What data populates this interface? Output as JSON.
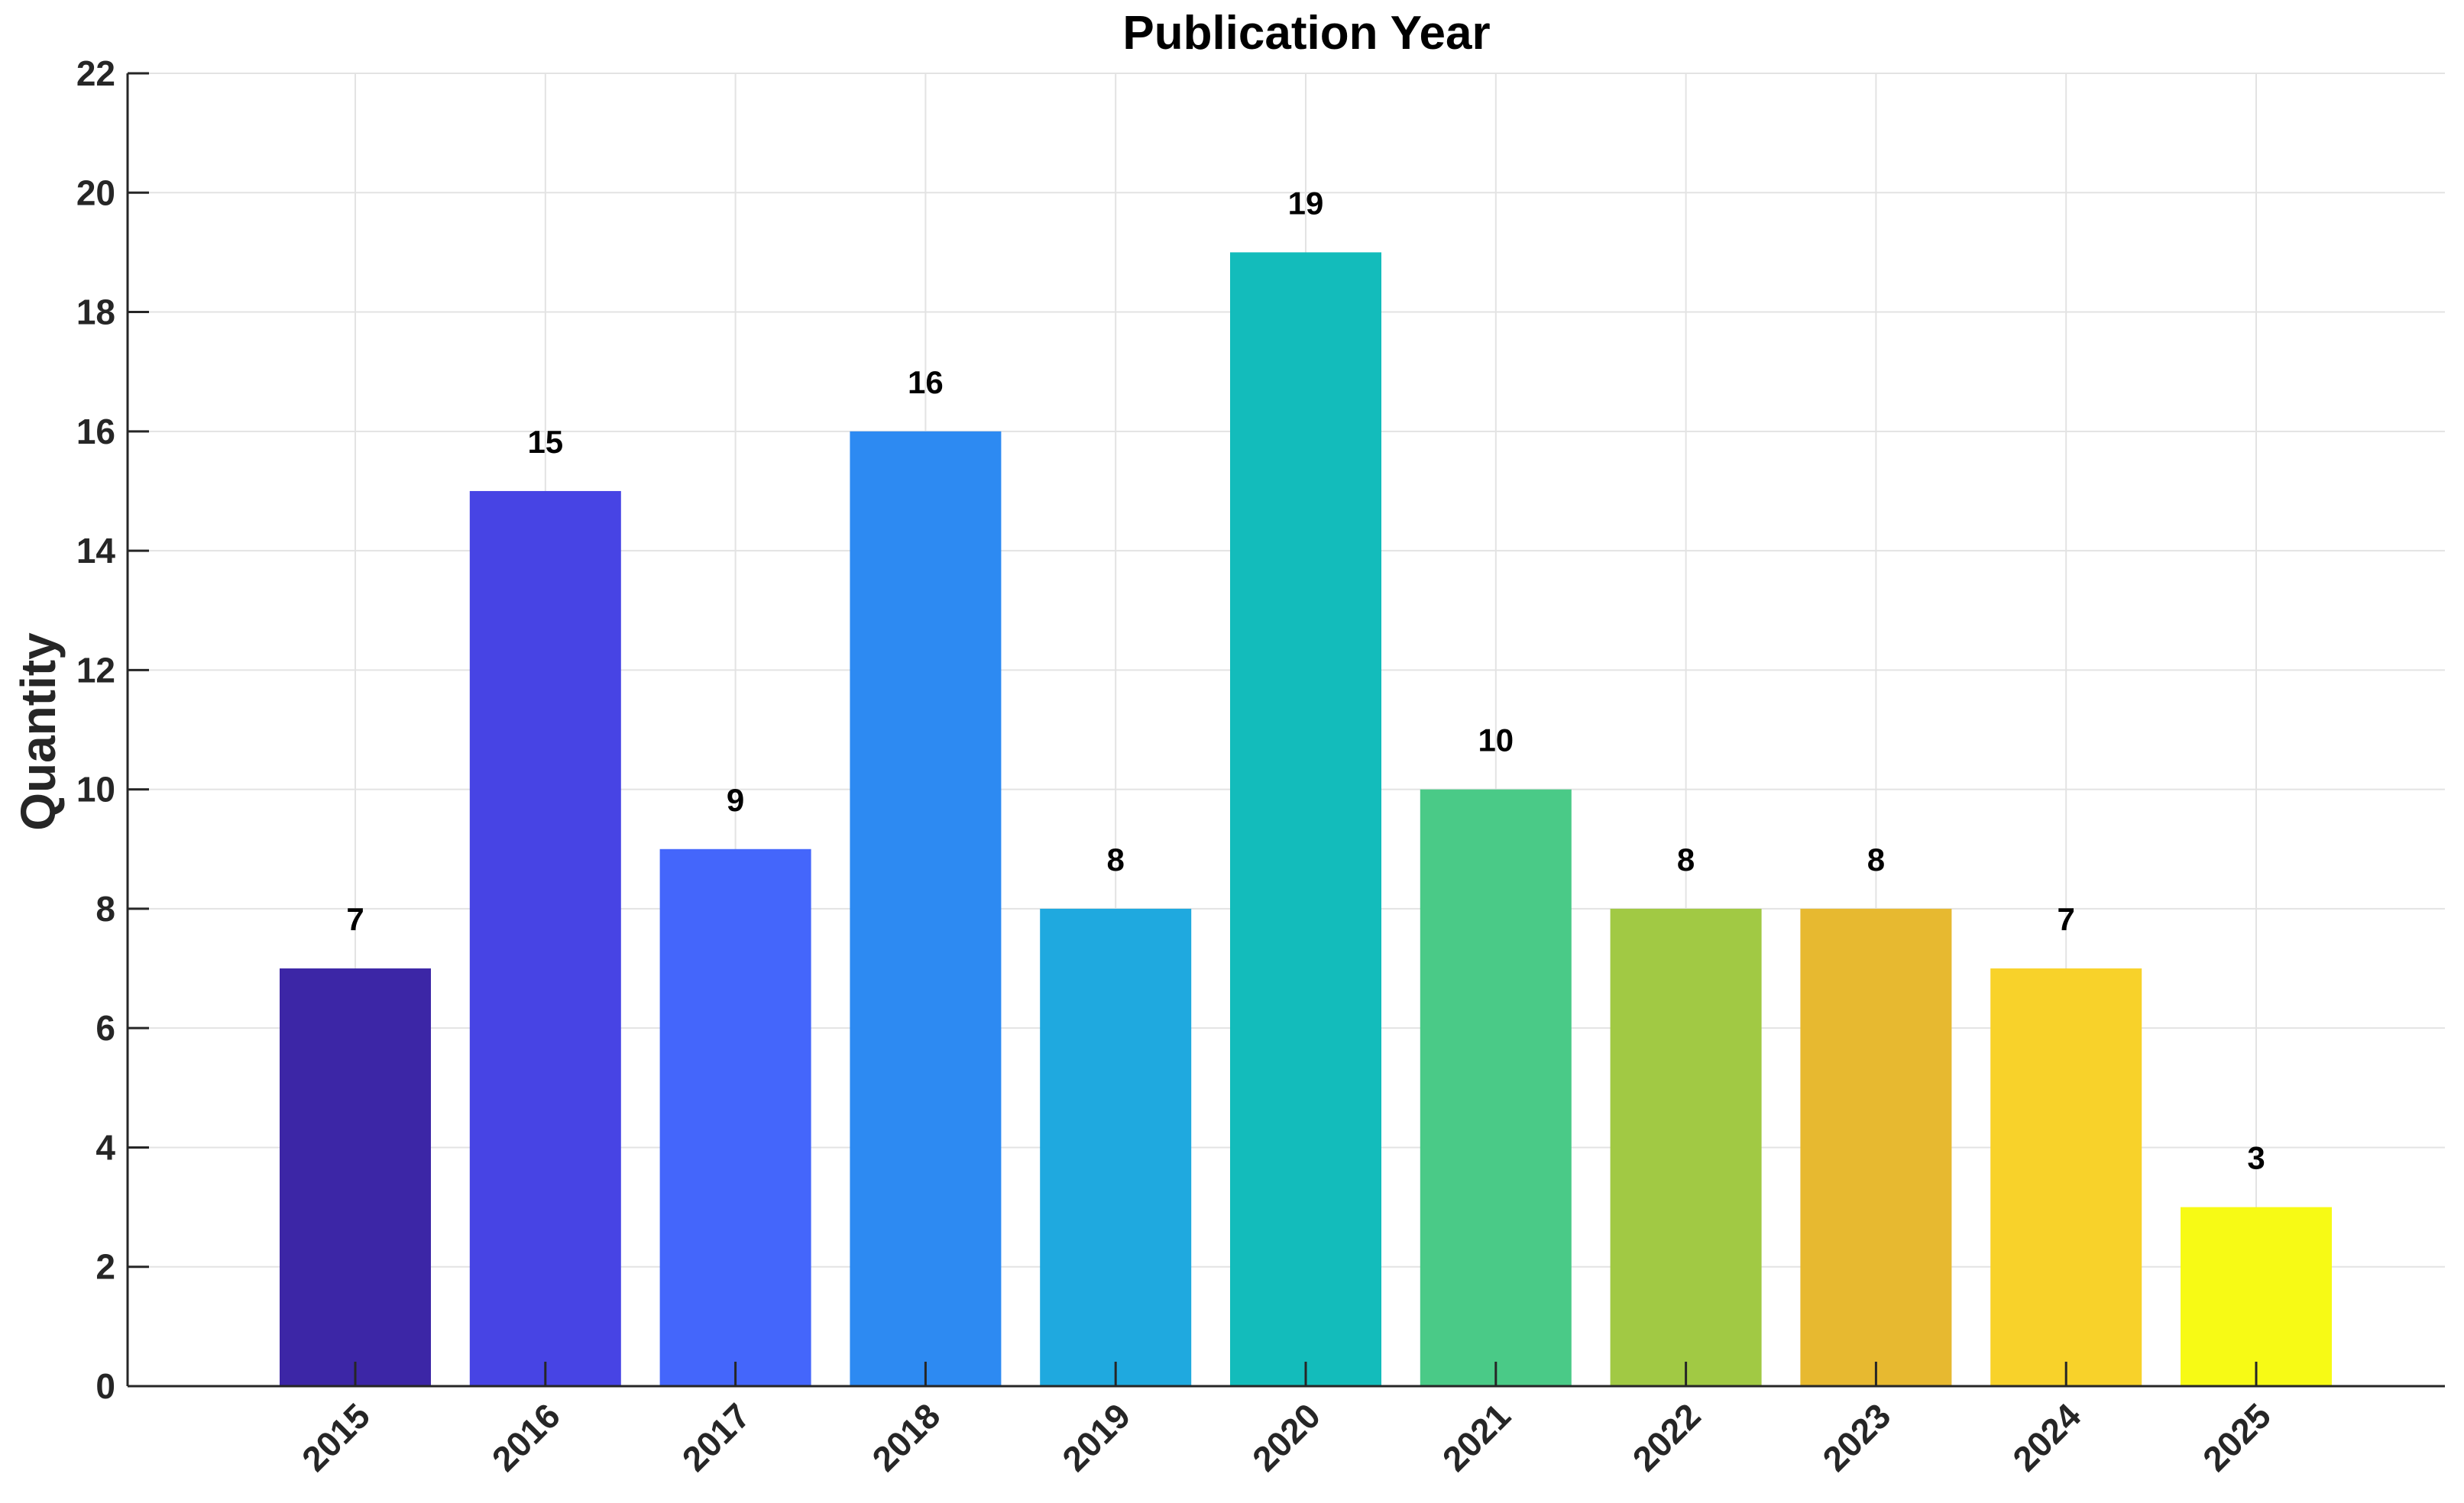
{
  "chart_data": {
    "type": "bar",
    "title": "Publication Year",
    "xlabel": "",
    "ylabel": "Quantity",
    "categories": [
      "2015",
      "2016",
      "2017",
      "2018",
      "2019",
      "2020",
      "2021",
      "2022",
      "2023",
      "2024",
      "2025"
    ],
    "values": [
      7,
      15,
      9,
      16,
      8,
      19,
      10,
      8,
      8,
      7,
      3
    ],
    "colors": [
      "#3c26a6",
      "#4744e4",
      "#4466fb",
      "#2d8af2",
      "#1fa9df",
      "#13bcbb",
      "#4aca87",
      "#a1c944",
      "#e7b930",
      "#f8d22a",
      "#f7fa15"
    ],
    "ylim": [
      0,
      22
    ],
    "yticks": [
      0,
      2,
      4,
      6,
      8,
      10,
      12,
      14,
      16,
      18,
      20,
      22
    ],
    "grid": true,
    "data_labels": true
  }
}
